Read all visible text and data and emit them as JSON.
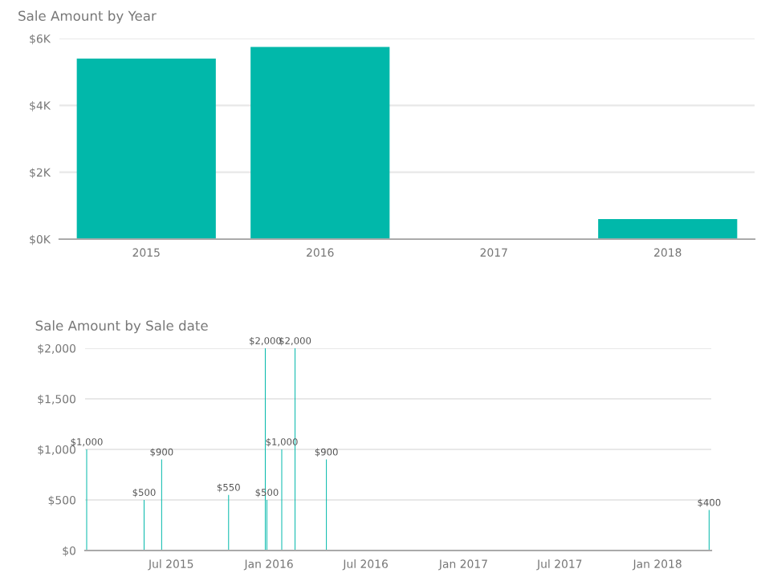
{
  "chart_data": [
    {
      "type": "bar",
      "title": "Sale Amount by Year",
      "categories": [
        "2015",
        "2016",
        "2017",
        "2018"
      ],
      "values": [
        5400,
        5750,
        0,
        600
      ],
      "color": "#01b8aa",
      "ylim": [
        0,
        6000
      ],
      "yticks": [
        {
          "value": 0,
          "label": "$0K"
        },
        {
          "value": 2000,
          "label": "$2K"
        },
        {
          "value": 4000,
          "label": "$4K"
        },
        {
          "value": 6000,
          "label": "$6K"
        }
      ],
      "grid": "y"
    },
    {
      "type": "bar",
      "title": "Sale Amount by Sale date",
      "x": [
        "2015-01-23",
        "2015-05-11",
        "2015-06-13",
        "2015-10-17",
        "2015-12-25",
        "2015-12-28",
        "2016-01-25",
        "2016-02-19",
        "2016-04-18",
        "2018-04-08"
      ],
      "values": [
        1000,
        500,
        900,
        550,
        2000,
        500,
        1000,
        2000,
        900,
        400
      ],
      "value_labels": [
        "$1,000",
        "$500",
        "$900",
        "$550",
        "$2,000",
        "$500",
        "$1,000",
        "$2,000",
        "$900",
        "$400"
      ],
      "color": "#01b8aa",
      "xlim": [
        "2015-01-20",
        "2018-04-12"
      ],
      "xticks": [
        {
          "value": "2015-07-01",
          "label": "Jul 2015"
        },
        {
          "value": "2016-01-01",
          "label": "Jan 2016"
        },
        {
          "value": "2016-07-01",
          "label": "Jul 2016"
        },
        {
          "value": "2017-01-01",
          "label": "Jan 2017"
        },
        {
          "value": "2017-07-01",
          "label": "Jul 2017"
        },
        {
          "value": "2018-01-01",
          "label": "Jan 2018"
        }
      ],
      "ylim": [
        0,
        2000
      ],
      "yticks": [
        {
          "value": 0,
          "label": "$0"
        },
        {
          "value": 500,
          "label": "$500"
        },
        {
          "value": 1000,
          "label": "$1,000"
        },
        {
          "value": 1500,
          "label": "$1,500"
        },
        {
          "value": 2000,
          "label": "$2,000"
        }
      ],
      "grid": "y"
    }
  ]
}
